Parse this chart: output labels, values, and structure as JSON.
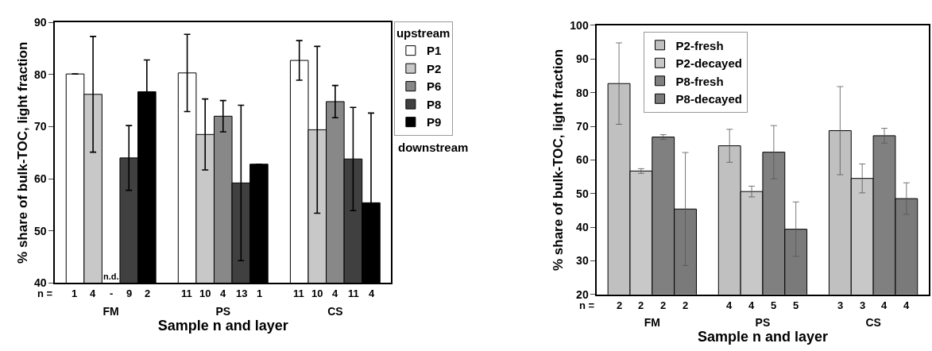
{
  "chart_data": [
    {
      "type": "bar",
      "xlabel": "Sample n and layer",
      "ylabel": "% share of bulk-TOC, light fraction",
      "legend_title": "upstream",
      "categories": [
        "FM",
        "PS",
        "CS"
      ],
      "ylim": [
        40,
        90
      ],
      "yticks": [
        40,
        50,
        60,
        70,
        80,
        90
      ],
      "legend": "right",
      "series": [
        {
          "name": "P1",
          "color": "#ffffff",
          "values": [
            80.1,
            80.3,
            82.7
          ],
          "errors": [
            null,
            7.4,
            3.8
          ]
        },
        {
          "name": "P2",
          "color": "#c8c8c8",
          "values": [
            76.2,
            68.5,
            69.4
          ],
          "errors": [
            11.1,
            6.8,
            16
          ]
        },
        {
          "name": "P6",
          "color": "#888888",
          "values": [
            null,
            72,
            74.8
          ],
          "errors": [
            null,
            3,
            3.1
          ]
        },
        {
          "name": "P8",
          "color": "#404040",
          "values": [
            64,
            59.2,
            63.8
          ],
          "errors": [
            6.2,
            14.9,
            9.9
          ]
        },
        {
          "name": "P9",
          "color": "#000000",
          "values": [
            76.7,
            62.8,
            55.4
          ],
          "errors": [
            6.1,
            null,
            17.2
          ]
        }
      ],
      "annotations": [
        "n =",
        "1",
        "4",
        "-",
        "9",
        "2",
        "11",
        "10",
        "4",
        "13",
        "1",
        "11",
        "10",
        "4",
        "11",
        "4",
        "n.d.",
        "downstream"
      ]
    },
    {
      "type": "bar",
      "xlabel": "Sample n and layer",
      "ylabel": "% share of bulk-TOC, light fraction",
      "categories": [
        "FM",
        "PS",
        "CS"
      ],
      "ylim": [
        20,
        100
      ],
      "yticks": [
        20,
        30,
        40,
        50,
        60,
        70,
        80,
        90,
        100
      ],
      "legend": "top left",
      "series": [
        {
          "name": "P2-fresh",
          "color": "#c0c0c0",
          "values": [
            82.7,
            64.2,
            68.7
          ],
          "errors": [
            12.1,
            4.9,
            13.1
          ]
        },
        {
          "name": "P2-decayed",
          "color": "#c8c8c8",
          "values": [
            56.7,
            50.6,
            54.5
          ],
          "errors": [
            0.7,
            1.6,
            4.3
          ]
        },
        {
          "name": "P8-fresh",
          "color": "#808080",
          "values": [
            66.8,
            62.3,
            67.2
          ],
          "errors": [
            0.7,
            7.9,
            2.2
          ]
        },
        {
          "name": "P8-decayed",
          "color": "#7a7a7a",
          "values": [
            45.4,
            39.4,
            48.5
          ],
          "errors": [
            16.8,
            8.1,
            4.7
          ]
        }
      ],
      "annotations": [
        "n =",
        "2",
        "2",
        "2",
        "2",
        "4",
        "4",
        "5",
        "5",
        "3",
        "3",
        "4",
        "4"
      ]
    }
  ]
}
